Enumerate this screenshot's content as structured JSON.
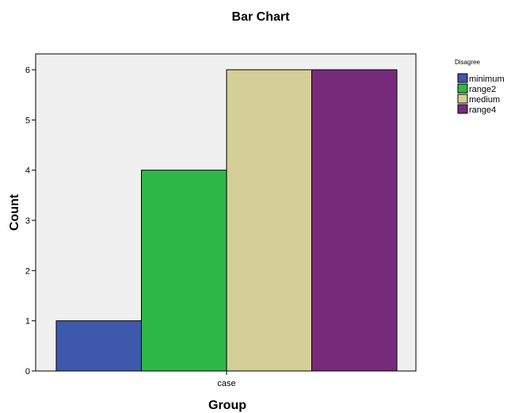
{
  "chart_data": {
    "type": "bar",
    "title": "Bar Chart",
    "xlabel": "Group",
    "ylabel": "Count",
    "categories": [
      "case"
    ],
    "ylim": [
      0,
      6
    ],
    "yticks": [
      0,
      1,
      2,
      3,
      4,
      5,
      6
    ],
    "grid": false,
    "legend": {
      "title": "Disagree",
      "placement": "right"
    },
    "series": [
      {
        "name": "minimum",
        "values": [
          1
        ],
        "color": "#3e58ac"
      },
      {
        "name": "range2",
        "values": [
          4
        ],
        "color": "#2eb848"
      },
      {
        "name": "medium",
        "values": [
          6
        ],
        "color": "#d4cf96"
      },
      {
        "name": "range4",
        "values": [
          6
        ],
        "color": "#782b7a"
      }
    ]
  },
  "colors": {
    "plot_background": "#f0f0f0",
    "outline": "#000000"
  }
}
